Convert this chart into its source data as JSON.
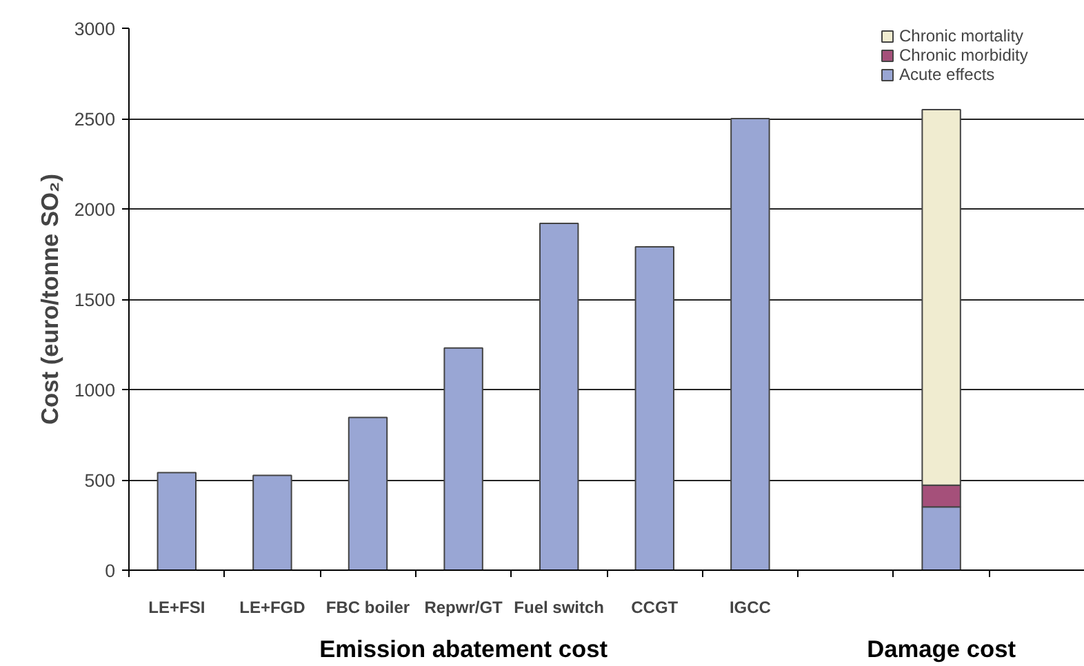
{
  "chart_data": {
    "type": "bar",
    "stacked": true,
    "ylabel": "Cost (euro/tonne SO₂)",
    "categories": [
      "LE+FSI",
      "LE+FGD",
      "FBC boiler",
      "Repwr/GT",
      "Fuel switch",
      "CCGT",
      "IGCC",
      null,
      null,
      null
    ],
    "series": [
      {
        "color": "#99a6d4",
        "values": [
          540,
          525,
          845,
          1230,
          1920,
          1790,
          2500,
          null,
          null,
          null
        ]
      },
      {
        "name": "Acute effects",
        "color": "#99a6d4",
        "values": [
          null,
          null,
          null,
          null,
          null,
          null,
          null,
          null,
          350,
          null
        ]
      },
      {
        "name": "Chronic morbidity",
        "color": "#a5507a",
        "values": [
          null,
          null,
          null,
          null,
          null,
          null,
          null,
          null,
          120,
          null
        ]
      },
      {
        "name": "Chronic mortality",
        "color": "#f0ecd0",
        "values": [
          null,
          null,
          null,
          null,
          null,
          null,
          null,
          null,
          2080,
          null
        ]
      }
    ],
    "ylim": [
      0,
      3000
    ],
    "yticks": [
      0,
      500,
      1000,
      1500,
      2000,
      2500,
      3000
    ],
    "grid": "y",
    "legend": "top right",
    "annotations": [
      "Emission abatement cost",
      "Damage cost"
    ]
  }
}
